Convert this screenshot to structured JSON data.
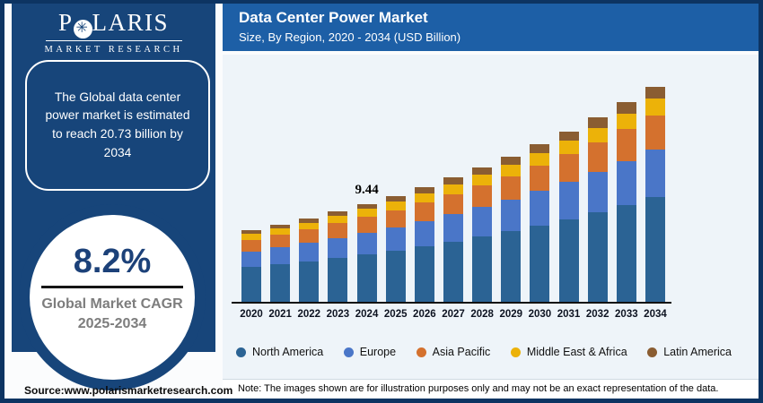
{
  "brand": {
    "name_start": "P",
    "name_end": "LARIS",
    "sub": "MARKET RESEARCH"
  },
  "icons": {
    "compass_star": "✳"
  },
  "sidebar": {
    "callout": "The Global data center power market is estimated to reach 20.73 billion by 2034",
    "cagr_value": "8.2%",
    "cagr_label": "Global Market CAGR",
    "cagr_period": "2025-2034"
  },
  "header": {
    "title": "Data Center Power Market",
    "subtitle": "Size, By Region, 2020 - 2034 (USD Billion)"
  },
  "chart_data": {
    "type": "bar",
    "stacked": true,
    "title": "Data Center Power Market",
    "subtitle": "Size, By Region, 2020 - 2034 (USD Billion)",
    "xlabel": "",
    "ylabel": "USD Billion",
    "grid": false,
    "y_axis_visible": false,
    "legend_position": "bottom",
    "categories": [
      "2020",
      "2021",
      "2022",
      "2023",
      "2024",
      "2025",
      "2026",
      "2027",
      "2028",
      "2029",
      "2030",
      "2031",
      "2032",
      "2033",
      "2034"
    ],
    "series": [
      {
        "name": "North America",
        "color": "#2b6394",
        "values": [
          3.35,
          3.61,
          3.91,
          4.23,
          4.58,
          4.95,
          5.36,
          5.8,
          6.28,
          6.79,
          7.35,
          7.95,
          8.6,
          9.31,
          10.05
        ]
      },
      {
        "name": "Europe",
        "color": "#4a76c8",
        "values": [
          1.52,
          1.64,
          1.77,
          1.92,
          2.08,
          2.25,
          2.43,
          2.63,
          2.85,
          3.08,
          3.33,
          3.61,
          3.9,
          4.22,
          4.56
        ]
      },
      {
        "name": "Asia Pacific",
        "color": "#d4712e",
        "values": [
          1.1,
          1.19,
          1.29,
          1.4,
          1.51,
          1.63,
          1.77,
          1.91,
          2.07,
          2.24,
          2.42,
          2.62,
          2.84,
          3.07,
          3.32
        ]
      },
      {
        "name": "Middle East & Africa",
        "color": "#ecb209",
        "values": [
          0.55,
          0.6,
          0.64,
          0.7,
          0.76,
          0.82,
          0.88,
          0.96,
          1.04,
          1.12,
          1.21,
          1.31,
          1.42,
          1.54,
          1.66
        ]
      },
      {
        "name": "Latin America",
        "color": "#8a5d32",
        "values": [
          0.38,
          0.41,
          0.45,
          0.47,
          0.51,
          0.56,
          0.61,
          0.66,
          0.7,
          0.77,
          0.84,
          0.9,
          0.98,
          1.05,
          1.14
        ]
      }
    ],
    "totals": [
      6.9,
      7.45,
      8.06,
      8.72,
      9.44,
      10.21,
      11.05,
      11.96,
      12.94,
      14.0,
      15.15,
      16.39,
      17.74,
      19.19,
      20.73
    ],
    "annotations": [
      {
        "category": "2024",
        "text": "9.44"
      }
    ]
  },
  "footer": {
    "source": "Source:www.polarismarketresearch.com",
    "note": "Note: The images shown are for illustration purposes only and may not be an exact representation of the data."
  },
  "colors": {
    "frame": "#0d3462",
    "sidebar_panel": "#17457a",
    "header_bar": "#1d5fa6",
    "chart_panel_bg": "#eef4f9",
    "cagr_accent": "#1c4179",
    "cagr_gray": "#7d7d7d"
  }
}
